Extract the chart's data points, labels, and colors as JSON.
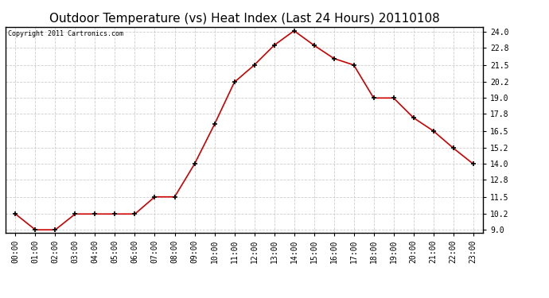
{
  "title": "Outdoor Temperature (vs) Heat Index (Last 24 Hours) 20110108",
  "copyright_text": "Copyright 2011 Cartronics.com",
  "x_labels": [
    "00:00",
    "01:00",
    "02:00",
    "03:00",
    "04:00",
    "05:00",
    "06:00",
    "07:00",
    "08:00",
    "09:00",
    "10:00",
    "11:00",
    "12:00",
    "13:00",
    "14:00",
    "15:00",
    "16:00",
    "17:00",
    "18:00",
    "19:00",
    "20:00",
    "21:00",
    "22:00",
    "23:00"
  ],
  "y_values": [
    10.2,
    9.0,
    9.0,
    10.2,
    10.2,
    10.2,
    10.2,
    11.5,
    11.5,
    14.0,
    17.0,
    20.2,
    21.5,
    23.0,
    24.1,
    23.0,
    22.0,
    21.5,
    19.0,
    19.0,
    17.5,
    16.5,
    15.2,
    14.0
  ],
  "line_color": "#cc0000",
  "marker_color": "#000000",
  "bg_color": "#ffffff",
  "grid_color": "#c8c8c8",
  "ylim": [
    8.8,
    24.4
  ],
  "yticks": [
    9.0,
    10.2,
    11.5,
    12.8,
    14.0,
    15.2,
    16.5,
    17.8,
    19.0,
    20.2,
    21.5,
    22.8,
    24.0
  ],
  "title_fontsize": 11,
  "copyright_fontsize": 6,
  "tick_fontsize": 7,
  "ylabel_fontsize": 7
}
